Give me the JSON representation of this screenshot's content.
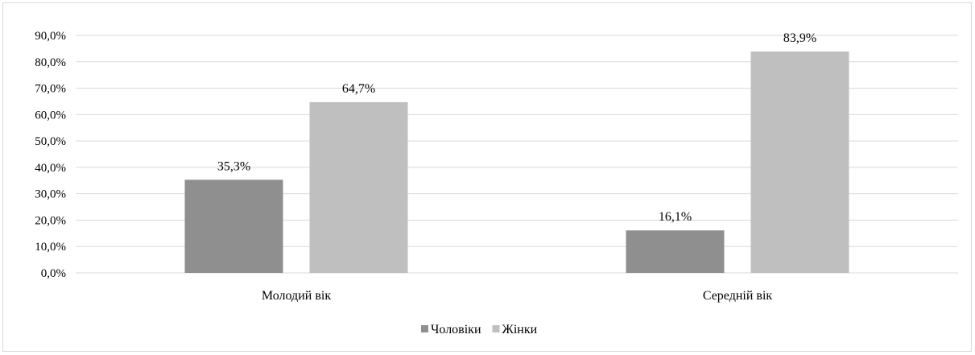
{
  "chart_data": {
    "type": "bar",
    "categories": [
      "Молодий вік",
      "Середній вік"
    ],
    "series": [
      {
        "name": "Чоловіки",
        "values": [
          35.3,
          16.1
        ],
        "labels": [
          "35,3%",
          "16,1%"
        ],
        "color": "#8f8f8f"
      },
      {
        "name": "Жінки",
        "values": [
          64.7,
          83.9
        ],
        "labels": [
          "64,7%",
          "83,9%"
        ],
        "color": "#bfbfbf"
      }
    ],
    "y_ticks": [
      "0,0%",
      "10,0%",
      "20,0%",
      "30,0%",
      "40,0%",
      "50,0%",
      "60,0%",
      "70,0%",
      "80,0%",
      "90,0%"
    ],
    "ylim": [
      0,
      90
    ],
    "grid": true,
    "legend_position": "bottom",
    "gridline_color": "#d9d9d9",
    "title": "",
    "xlabel": "",
    "ylabel": ""
  }
}
